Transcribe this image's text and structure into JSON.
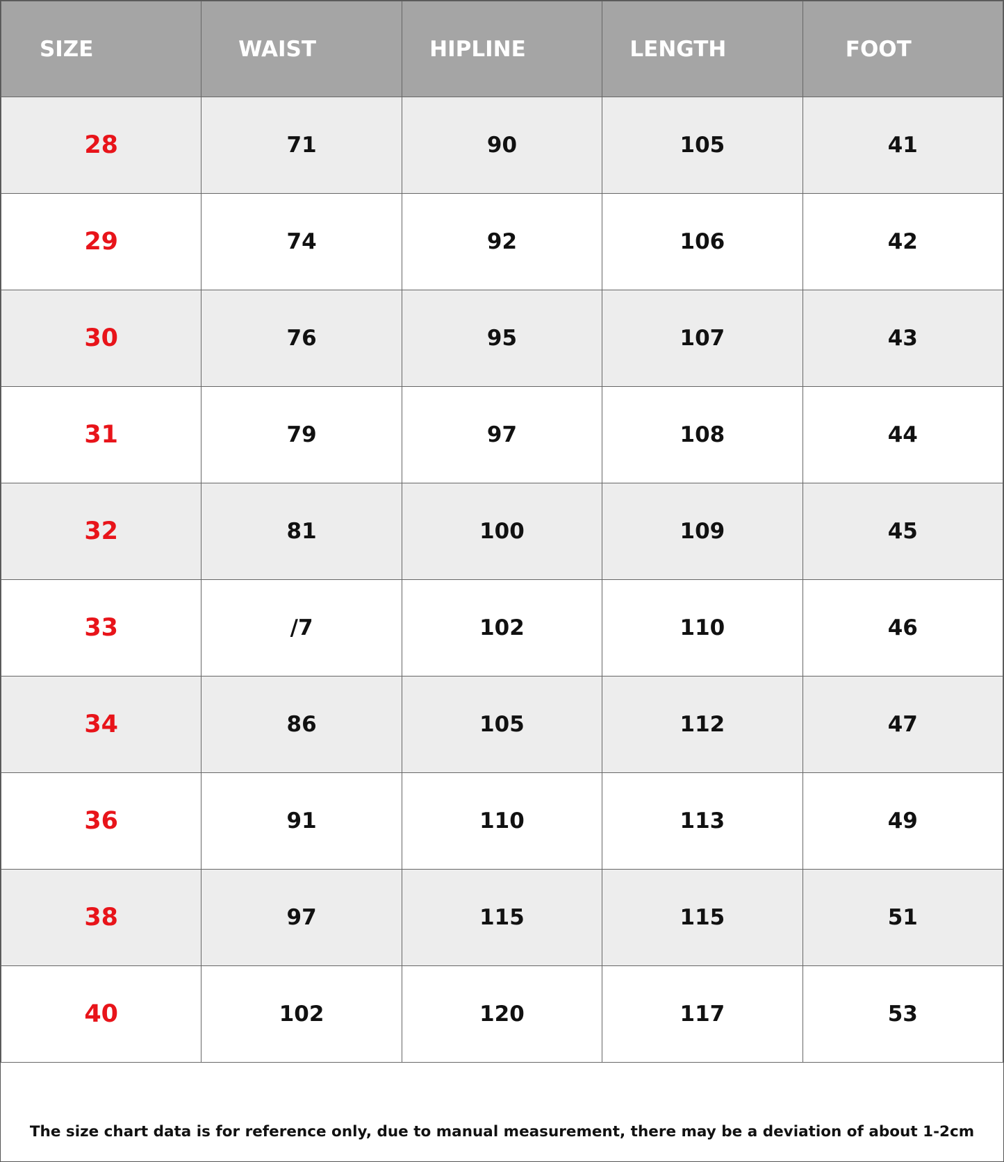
{
  "headers": [
    "SIZE",
    "WAIST",
    "HIPLINE",
    "LENGTH",
    "FOOT"
  ],
  "rows": [
    [
      "28",
      "71",
      "90",
      "105",
      "41"
    ],
    [
      "29",
      "74",
      "92",
      "106",
      "42"
    ],
    [
      "30",
      "76",
      "95",
      "107",
      "43"
    ],
    [
      "31",
      "79",
      "97",
      "108",
      "44"
    ],
    [
      "32",
      "81",
      "100",
      "109",
      "45"
    ],
    [
      "33",
      "/7",
      "102",
      "110",
      "46"
    ],
    [
      "34",
      "86",
      "105",
      "112",
      "47"
    ],
    [
      "36",
      "91",
      "110",
      "113",
      "49"
    ],
    [
      "38",
      "97",
      "115",
      "115",
      "51"
    ],
    [
      "40",
      "102",
      "120",
      "117",
      "53"
    ]
  ],
  "footer_note": "The size chart data is for reference only, due to manual measurement, there may be a deviation of about 1-2cm",
  "colors": {
    "header_bg": "#a5a5a5",
    "size_text": "#e8141a",
    "stripe": "#ededed"
  }
}
